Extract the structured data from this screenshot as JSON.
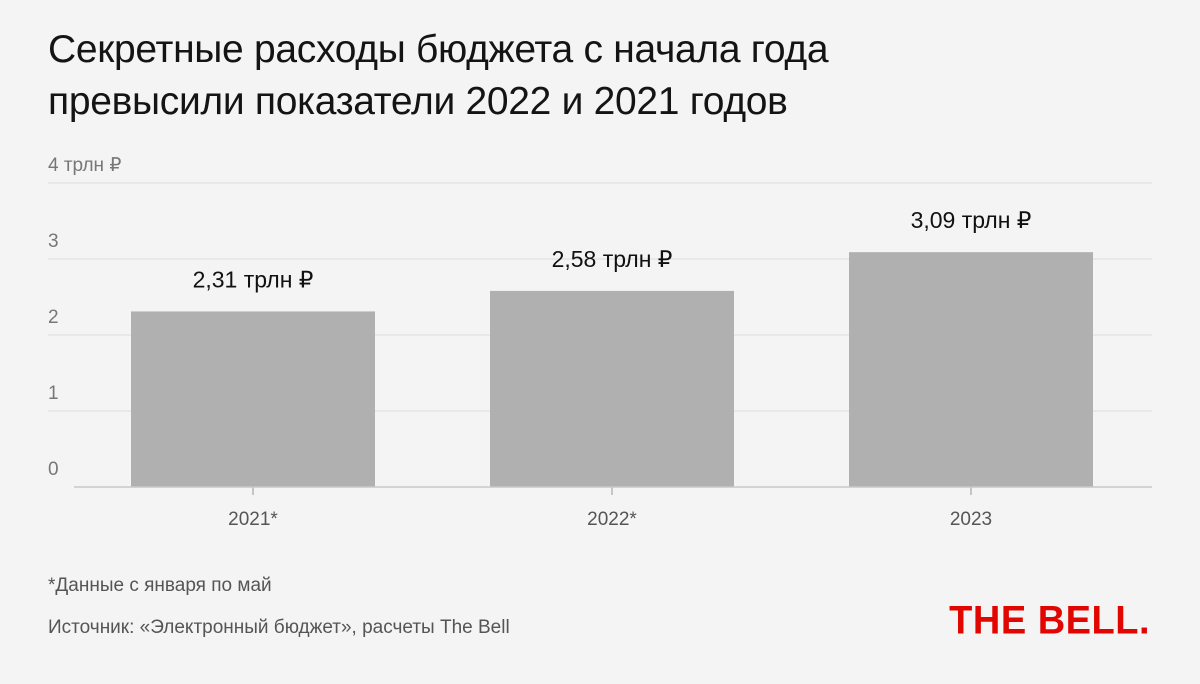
{
  "title_lines": [
    "Секретные расходы бюджета с начала года",
    "превысили показатели 2022 и 2021 годов"
  ],
  "chart_data": {
    "type": "bar",
    "categories": [
      "2021*",
      "2022*",
      "2023"
    ],
    "values": [
      2.31,
      2.58,
      3.09
    ],
    "data_labels": [
      "2,31 трлн ₽",
      "2,58 трлн ₽",
      "3,09 трлн ₽"
    ],
    "y_ticks": [
      0,
      1,
      2,
      3,
      4
    ],
    "y_tick_labels": [
      "0",
      "1",
      "2",
      "3",
      "4 трлн ₽"
    ],
    "ylim": [
      0,
      4
    ],
    "grid": true,
    "bar_color": "#b0b0b0",
    "grid_color": "#dcdcdc"
  },
  "footnote": "*Данные с января по май",
  "source": "Источник: «Электронный бюджет», расчеты The Bell",
  "logo_text": "THE BELL.",
  "colors": {
    "background": "#f4f4f4",
    "logo": "#e10600"
  }
}
